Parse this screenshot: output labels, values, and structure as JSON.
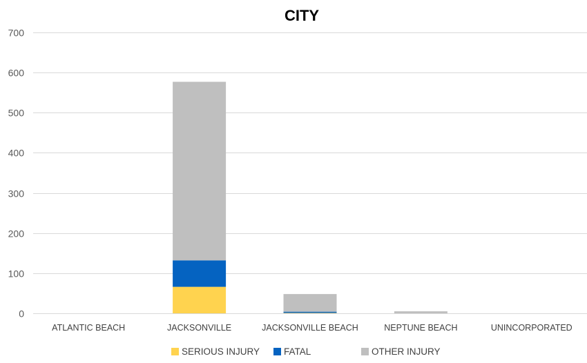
{
  "chart_data": {
    "type": "bar",
    "stacked": true,
    "title": "CITY",
    "xlabel": "",
    "ylabel": "",
    "ylim": [
      0,
      700
    ],
    "yticks": [
      0,
      100,
      200,
      300,
      400,
      500,
      600,
      700
    ],
    "grid": true,
    "legend_position": "bottom",
    "categories": [
      "ATLANTIC BEACH",
      "JACKSONVILLE",
      "JACKSONVILLE BEACH",
      "NEPTUNE BEACH",
      "UNINCORPORATED"
    ],
    "series": [
      {
        "name": "SERIOUS INJURY",
        "color": "#ffd34f",
        "values": [
          0,
          66,
          1,
          0,
          0
        ]
      },
      {
        "name": "FATAL",
        "color": "#0563c1",
        "values": [
          0,
          66,
          3,
          0,
          0
        ]
      },
      {
        "name": "OTHER INJURY",
        "color": "#bfbfbf",
        "values": [
          0,
          445,
          44,
          5,
          0
        ]
      }
    ]
  }
}
